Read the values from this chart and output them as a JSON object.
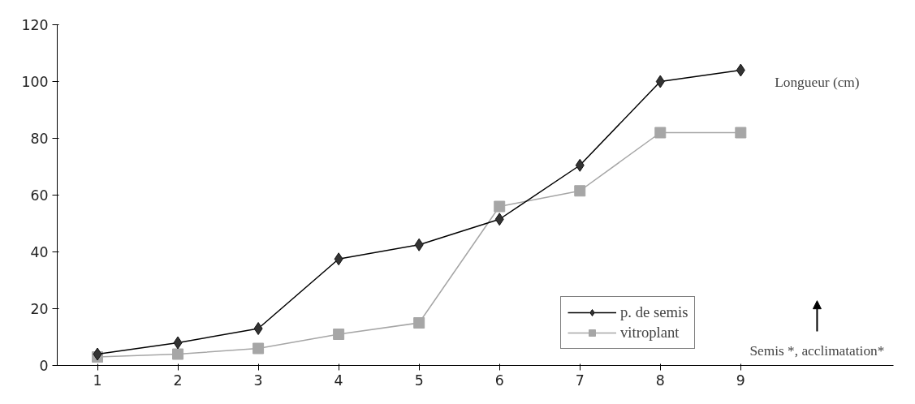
{
  "chart_data": {
    "type": "line",
    "x": [
      1,
      2,
      3,
      4,
      5,
      6,
      7,
      8,
      9
    ],
    "xlim": [
      0.5,
      10.9
    ],
    "xticks": [
      1,
      2,
      3,
      4,
      5,
      6,
      7,
      8,
      9
    ],
    "ylim": [
      0,
      120
    ],
    "yticks": [
      0,
      20,
      40,
      60,
      80,
      100,
      120
    ],
    "grid": false,
    "legend": "bottom right",
    "series": [
      {
        "name": "p. de semis",
        "color": "#333333",
        "marker": "diamond",
        "values": [
          4,
          8,
          13,
          37.5,
          42.5,
          51.5,
          70.5,
          100,
          104
        ]
      },
      {
        "name": "vitroplant",
        "color": "#a6a6a6",
        "marker": "square",
        "values": [
          3,
          4,
          6,
          11,
          15,
          56,
          61.5,
          82,
          82
        ]
      }
    ],
    "annotations": [
      "Longueur (cm)",
      "Semis *, acclimatation*"
    ]
  }
}
